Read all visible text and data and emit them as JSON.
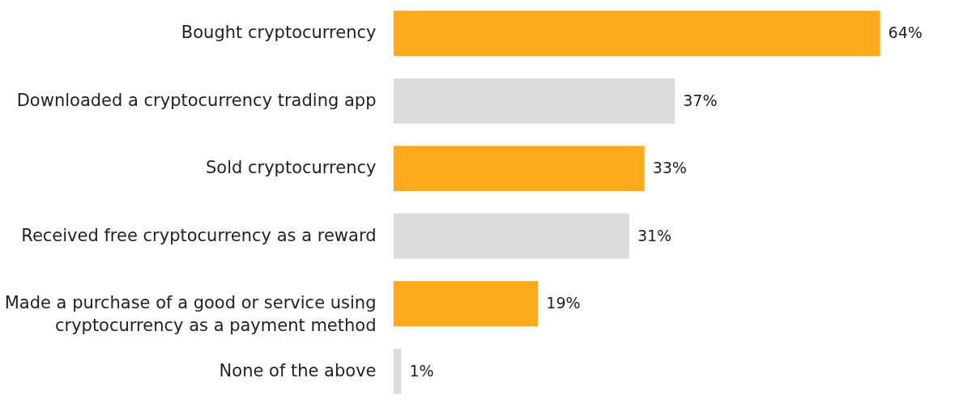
{
  "chart_data": {
    "type": "bar",
    "orientation": "horizontal",
    "categories": [
      "Bought cryptocurrency",
      "Downloaded a cryptocurrency trading app",
      "Sold cryptocurrency",
      "Received free cryptocurrency as a reward",
      "Made a purchase of a good or service using\ncryptocurrency as a payment method",
      "None of the above"
    ],
    "values": [
      64,
      37,
      33,
      31,
      19,
      1
    ],
    "colors": [
      "#fbab1c",
      "#dcdcdc",
      "#fbab1c",
      "#dcdcdc",
      "#fbab1c",
      "#dcdcdc"
    ],
    "value_labels": [
      "64%",
      "37%",
      "33%",
      "31%",
      "19%",
      "1%"
    ],
    "grid": false
  }
}
